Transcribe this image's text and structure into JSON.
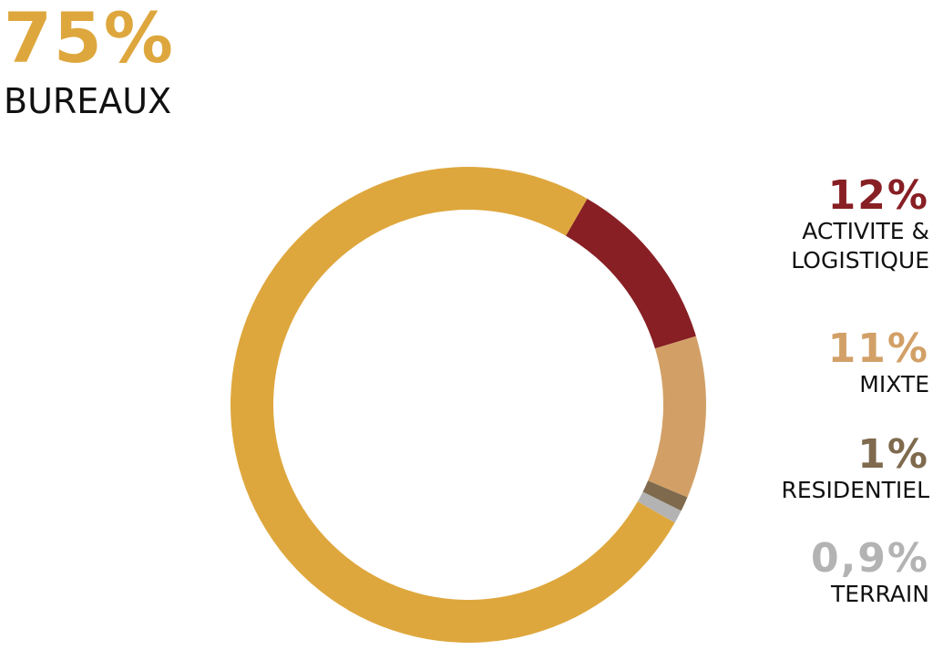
{
  "chart_data": {
    "type": "pie",
    "donut": true,
    "slices": [
      {
        "label": "BUREAUX",
        "value": 75,
        "display": "75%",
        "color": "#dea73d"
      },
      {
        "label": "ACTIVITE & LOGISTIQUE",
        "value": 12,
        "display": "12%",
        "color": "#871f24"
      },
      {
        "label": "MIXTE",
        "value": 11,
        "display": "11%",
        "color": "#d2a067"
      },
      {
        "label": "RESIDENTIEL",
        "value": 1,
        "display": "1%",
        "color": "#7f6a4e"
      },
      {
        "label": "TERRAIN",
        "value": 0.9,
        "display": "0,9%",
        "color": "#b3b3b3"
      }
    ],
    "label_lines": {
      "activite": [
        "ACTIVITE &",
        "LOGISTIQUE"
      ]
    }
  }
}
